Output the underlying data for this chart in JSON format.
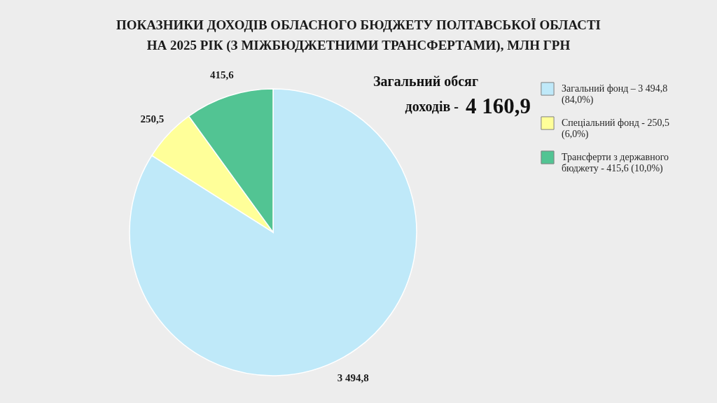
{
  "chart_data": {
    "type": "pie",
    "title": "ПОКАЗНИКИ ДОХОДІВ ОБЛАСНОГО БЮДЖЕТУ ПОЛТАВСЬКОЇ ОБЛАСТІ НА 2025 РІК (З МІЖБЮДЖЕТНИМИ ТРАНСФЕРТАМИ), МЛН ГРН",
    "annotations": [
      "Загальний обсяг",
      "доходів -",
      "4 160,9"
    ],
    "categories": [
      "Загальний фонд – 3 494,8 (84,0%)",
      "Спеціальний фонд - 250,5 (6,0%)",
      "Трансферти з державного бюджету - 415,6 (10,0%)"
    ],
    "values": [
      3494.8,
      250.5,
      415.6
    ],
    "colors": [
      "#bfe9f9",
      "#ffff99",
      "#52c493"
    ],
    "value_labels": [
      "3 494,8",
      "250,5",
      "415,6"
    ],
    "legend": "top right"
  }
}
